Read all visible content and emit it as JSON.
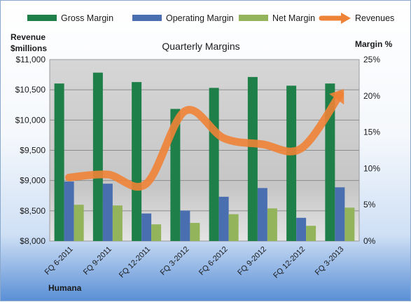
{
  "chart_data": {
    "type": "bar",
    "title": "Quarterly Margins",
    "corner_label": "Humana",
    "categories": [
      "FQ 6-2011",
      "FQ 9-2011",
      "FQ 12-2011",
      "FQ 3-2012",
      "FQ 6-2012",
      "FQ 9-2012",
      "FQ 12-2012",
      "FQ 3-2013"
    ],
    "y_left": {
      "label_line1": "Revenue",
      "label_line2": "$millions",
      "ylim": [
        8000,
        11000
      ],
      "ticks": [
        "$8,000",
        "$8,500",
        "$9,000",
        "$9,500",
        "$10,000",
        "$10,500",
        "$11,000"
      ]
    },
    "y_right": {
      "label": "Margin %",
      "ylim": [
        0,
        25
      ],
      "ticks": [
        "0%",
        "5%",
        "10%",
        "15%",
        "20%",
        "25%"
      ]
    },
    "series": [
      {
        "name": "Gross Margin",
        "kind": "bar",
        "axis": "right",
        "color": "#1e8048",
        "values": [
          21.7,
          23.2,
          21.9,
          18.2,
          21.1,
          22.6,
          21.4,
          21.7
        ]
      },
      {
        "name": "Operating Margin",
        "kind": "bar",
        "axis": "right",
        "color": "#4a6fb1",
        "values": [
          8.2,
          7.9,
          3.8,
          4.2,
          6.1,
          7.3,
          3.2,
          7.4
        ]
      },
      {
        "name": "Net Margin",
        "kind": "bar",
        "axis": "right",
        "color": "#93b45a",
        "values": [
          5.0,
          4.9,
          2.3,
          2.5,
          3.7,
          4.5,
          2.1,
          4.6
        ]
      },
      {
        "name": "Revenues",
        "kind": "line",
        "axis": "left",
        "color": "#ee8236",
        "values": [
          9050,
          9100,
          8950,
          10150,
          9700,
          9600,
          9530,
          10420
        ]
      }
    ],
    "grid": true,
    "legend": "top"
  }
}
